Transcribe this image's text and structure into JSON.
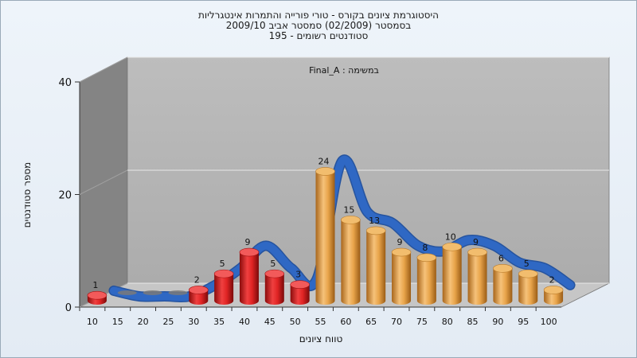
{
  "title_lines": [
    "היסטוגרמת ציונים בקורס - טורי פורייה והתמרות אינטגרליות",
    "בסמסטר  (02/2009)  סמסטר אביב 2009/10",
    "סטודנטים רשומים - 195"
  ],
  "chart_data": {
    "type": "bar",
    "subtitle": "במשימה : Final_A",
    "xlabel": "טווח ציונים",
    "ylabel": "מספר סטודנטים",
    "categories": [
      "10",
      "15",
      "20",
      "25",
      "30",
      "35",
      "40",
      "45",
      "50",
      "55",
      "60",
      "65",
      "70",
      "75",
      "80",
      "85",
      "90",
      "95",
      "100"
    ],
    "values": [
      1,
      0,
      0,
      0,
      2,
      5,
      9,
      5,
      3,
      24,
      15,
      13,
      9,
      8,
      10,
      9,
      6,
      5,
      2
    ],
    "value_labels": [
      "1",
      "",
      "",
      "",
      "2",
      "5",
      "9",
      "5",
      "3",
      "24",
      "15",
      "13",
      "9",
      "8",
      "10",
      "9",
      "6",
      "5",
      "2"
    ],
    "ylim": [
      0,
      40
    ],
    "yticks": [
      "0",
      "20",
      "40"
    ],
    "fail_threshold": 55,
    "colors": {
      "fail": "#d42020",
      "pass": "#e6a040",
      "curve": "#2f68c4",
      "wall": "#b5b5b5",
      "side_wall": "#8c8c8c"
    },
    "grid": true,
    "three_d": true
  }
}
